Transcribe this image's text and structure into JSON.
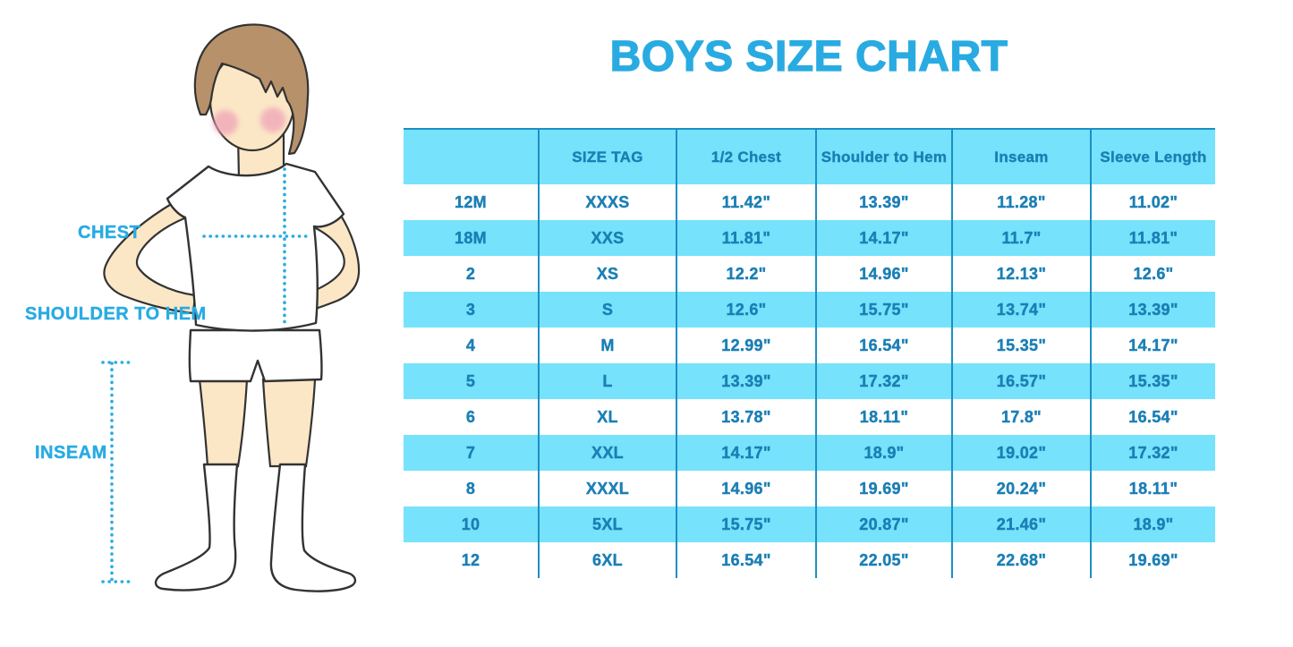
{
  "title": "BOYS SIZE CHART",
  "figure_labels": {
    "chest": "CHEST",
    "shoulder_to_hem": "SHOULDER TO HEM",
    "inseam": "INSEAM"
  },
  "colors": {
    "accent_blue": "#29ABE2",
    "table_text": "#1B7FB5",
    "stripe_cyan": "#76E2FB",
    "grid_line": "#1D8FC4",
    "skin": "#FBE7C6",
    "hair": "#B7916A",
    "blush": "#EFA4B8",
    "outline": "#333333"
  },
  "chart_data": {
    "type": "table",
    "title": "BOYS SIZE CHART",
    "columns": [
      "",
      "SIZE TAG",
      "1/2 Chest",
      "Shoulder to Hem",
      "Inseam",
      "Sleeve Length"
    ],
    "rows": [
      [
        "12M",
        "XXXS",
        "11.42\"",
        "13.39\"",
        "11.28\"",
        "11.02\""
      ],
      [
        "18M",
        "XXS",
        "11.81\"",
        "14.17\"",
        "11.7\"",
        "11.81\""
      ],
      [
        "2",
        "XS",
        "12.2\"",
        "14.96\"",
        "12.13\"",
        "12.6\""
      ],
      [
        "3",
        "S",
        "12.6\"",
        "15.75\"",
        "13.74\"",
        "13.39\""
      ],
      [
        "4",
        "M",
        "12.99\"",
        "16.54\"",
        "15.35\"",
        "14.17\""
      ],
      [
        "5",
        "L",
        "13.39\"",
        "17.32\"",
        "16.57\"",
        "15.35\""
      ],
      [
        "6",
        "XL",
        "13.78\"",
        "18.11\"",
        "17.8\"",
        "16.54\""
      ],
      [
        "7",
        "XXL",
        "14.17\"",
        "18.9\"",
        "19.02\"",
        "17.32\""
      ],
      [
        "8",
        "XXXL",
        "14.96\"",
        "19.69\"",
        "20.24\"",
        "18.11\""
      ],
      [
        "10",
        "5XL",
        "15.75\"",
        "20.87\"",
        "21.46\"",
        "18.9\""
      ],
      [
        "12",
        "6XL",
        "16.54\"",
        "22.05\"",
        "22.68\"",
        "19.69\""
      ]
    ],
    "row_stripe_pattern": [
      "white",
      "cyan"
    ],
    "grid": "vertical-only",
    "legend_position": "none"
  }
}
